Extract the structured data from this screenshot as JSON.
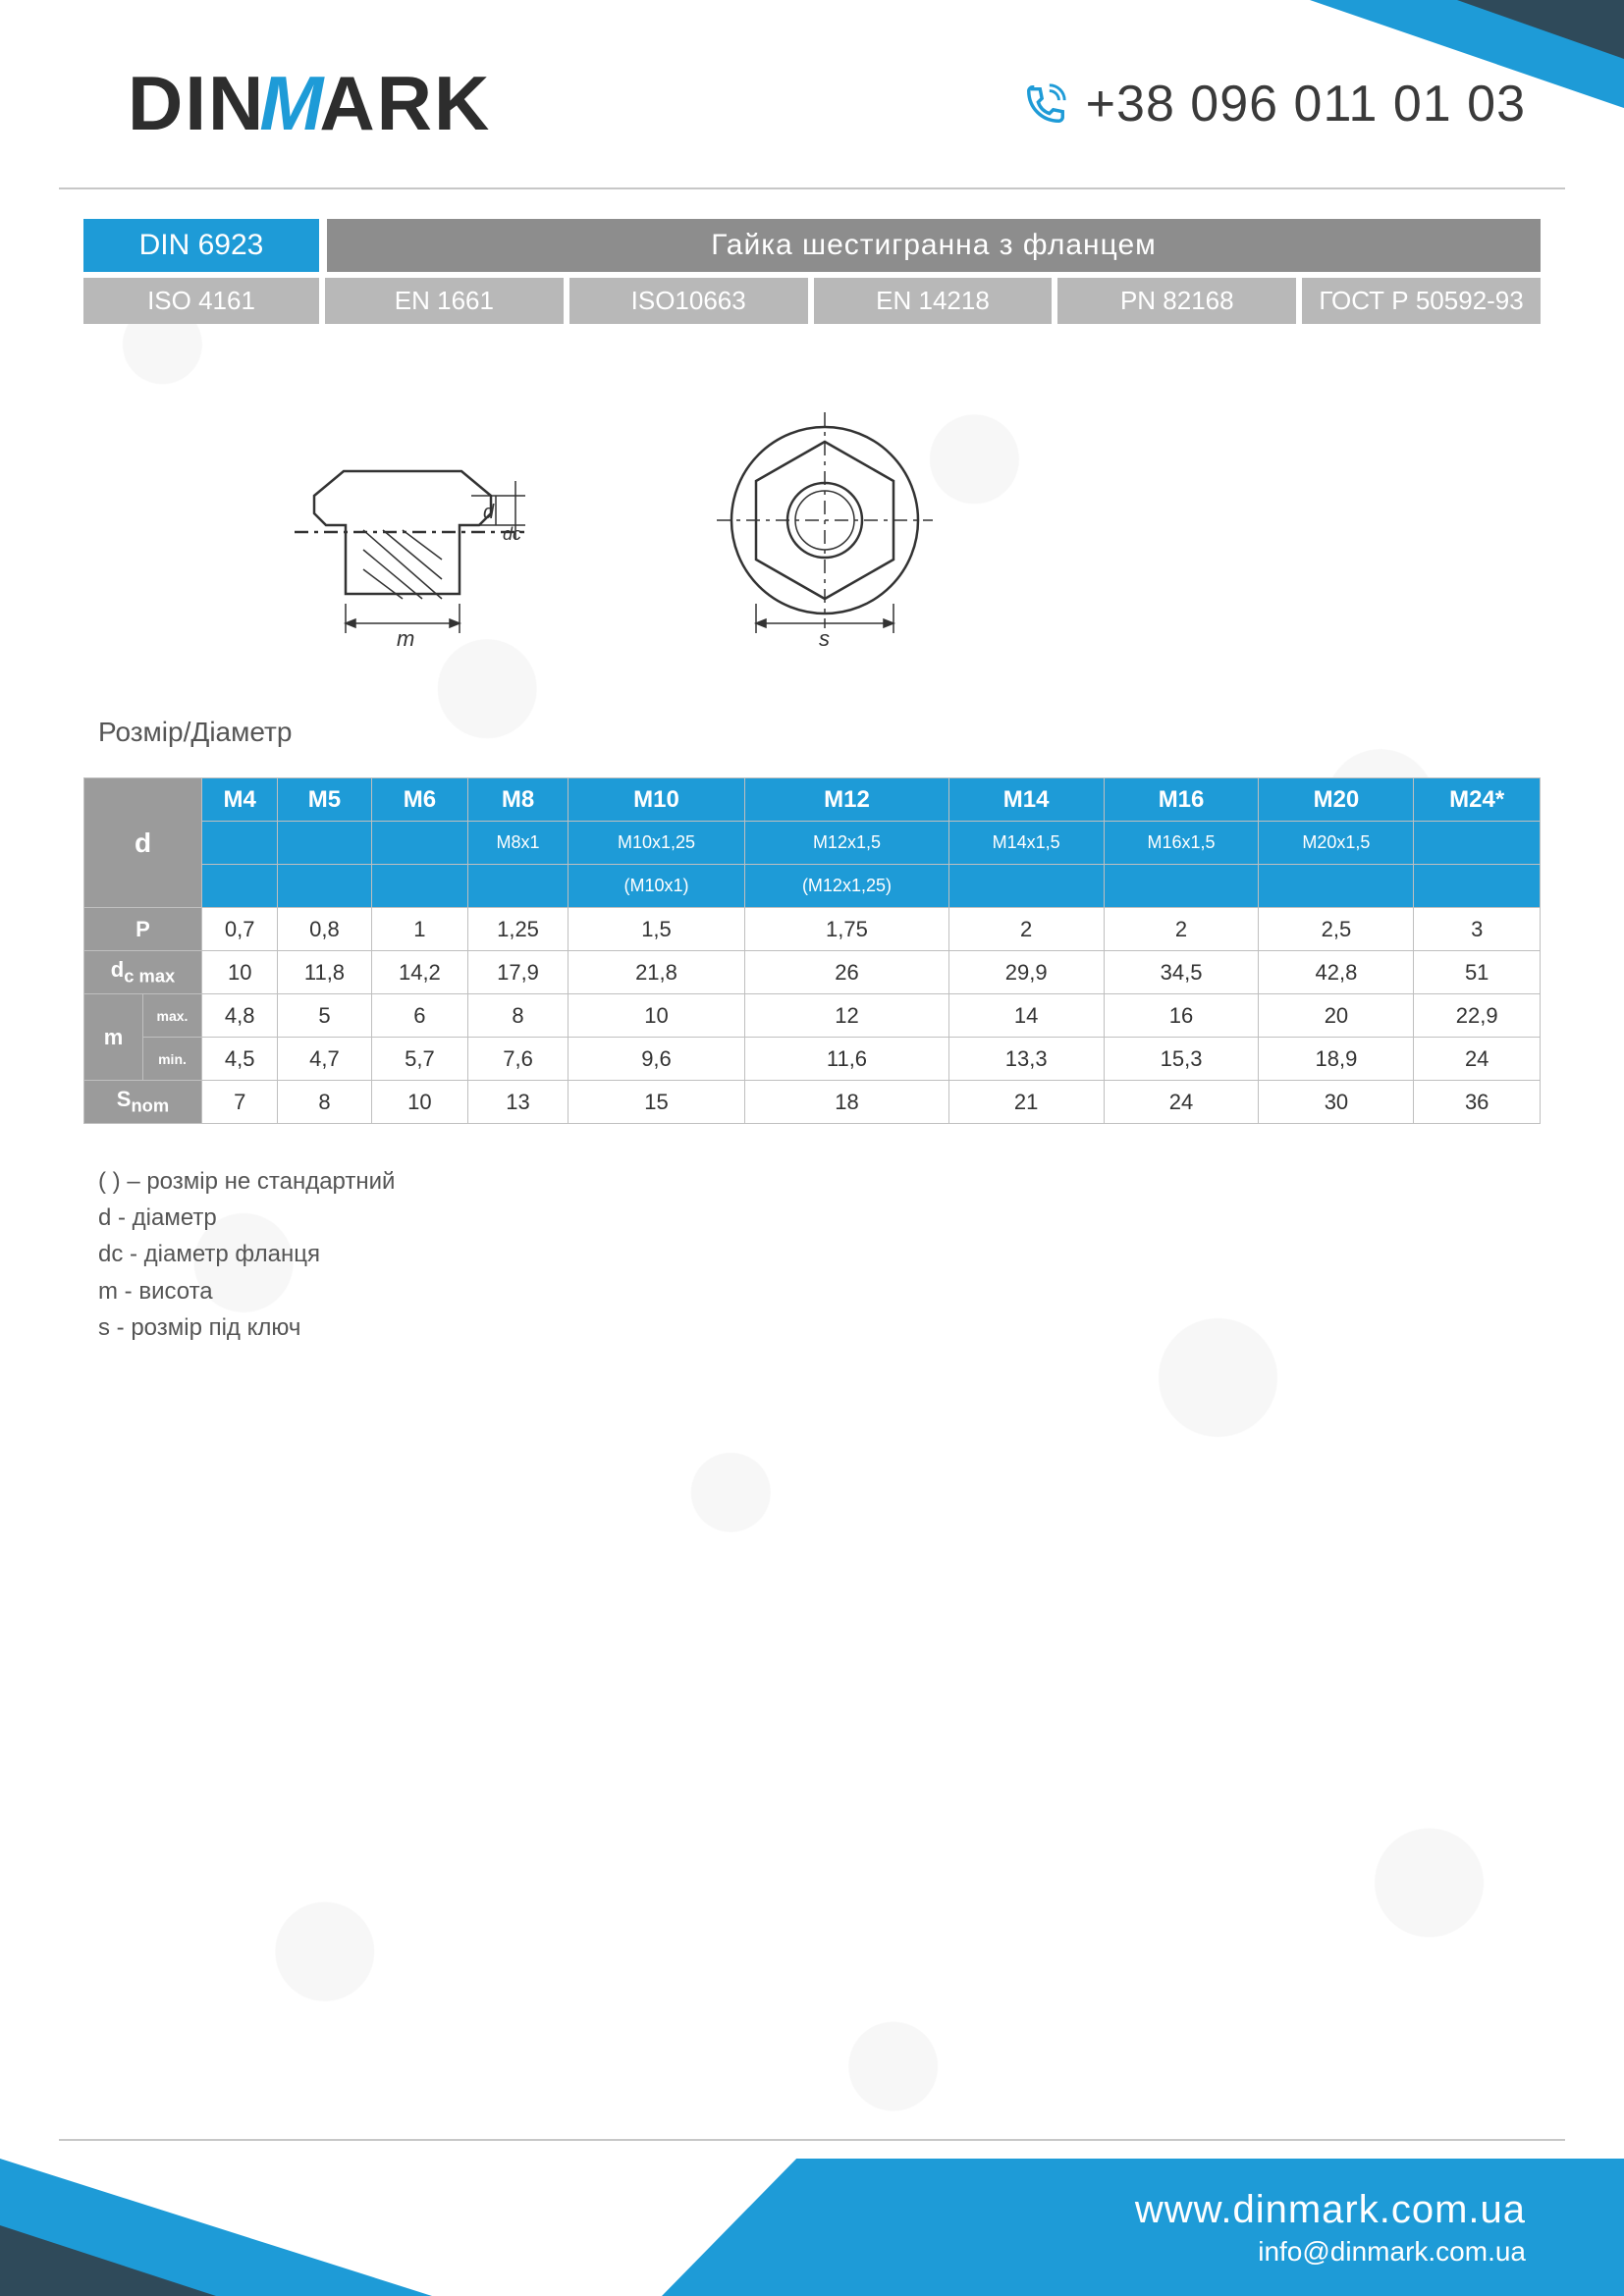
{
  "brand": {
    "name_pre": "DIN",
    "name_m": "M",
    "name_post": "ARK"
  },
  "phone": "+38 096 011 01 03",
  "title_code": "DIN 6923",
  "title_text": "Гайка шестигранна з фланцем",
  "standards": [
    "ISO 4161",
    "EN 1661",
    "ISO10663",
    "EN 14218",
    "PN 82168",
    "ГОСТ Р 50592-93"
  ],
  "drawing_labels": {
    "m": "m",
    "d": "d",
    "dc": "dc",
    "s": "s"
  },
  "section_label": "Розмір/Діаметр",
  "colors": {
    "blue": "#1e9bd7",
    "dark": "#2f4a5a",
    "gray_header": "#8d8d8d",
    "gray_chip": "#b8b8b8",
    "gray_row": "#9b9b9b",
    "border": "#bfbfbf",
    "text": "#333333",
    "muted": "#555555"
  },
  "table": {
    "sizes": [
      "M4",
      "M5",
      "M6",
      "M8",
      "M10",
      "M12",
      "M14",
      "M16",
      "M20",
      "M24*"
    ],
    "fine1": [
      "",
      "",
      "",
      "M8x1",
      "M10x1,25",
      "M12x1,5",
      "M14x1,5",
      "M16x1,5",
      "M20x1,5",
      ""
    ],
    "fine2": [
      "",
      "",
      "",
      "",
      "(M10x1)",
      "(M12x1,25)",
      "",
      "",
      "",
      ""
    ],
    "row_labels": {
      "d": "d",
      "P": "P",
      "dc": "dc max",
      "m": "m",
      "m_max": "max.",
      "m_min": "min.",
      "S": "Snom"
    },
    "P": [
      "0,7",
      "0,8",
      "1",
      "1,25",
      "1,5",
      "1,75",
      "2",
      "2",
      "2,5",
      "3"
    ],
    "dc_max": [
      "10",
      "11,8",
      "14,2",
      "17,9",
      "21,8",
      "26",
      "29,9",
      "34,5",
      "42,8",
      "51"
    ],
    "m_max": [
      "4,8",
      "5",
      "6",
      "8",
      "10",
      "12",
      "14",
      "16",
      "20",
      "22,9"
    ],
    "m_min": [
      "4,5",
      "4,7",
      "5,7",
      "7,6",
      "9,6",
      "11,6",
      "13,3",
      "15,3",
      "18,9",
      "24"
    ],
    "S_nom": [
      "7",
      "8",
      "10",
      "13",
      "15",
      "18",
      "21",
      "24",
      "30",
      "36"
    ]
  },
  "legend": [
    "( ) – розмір не стандартний",
    "d - діаметр",
    "dc - діаметр фланця",
    "m - висота",
    "s - розмір під ключ"
  ],
  "footer": {
    "site": "www.dinmark.com.ua",
    "mail": "info@dinmark.com.ua"
  }
}
